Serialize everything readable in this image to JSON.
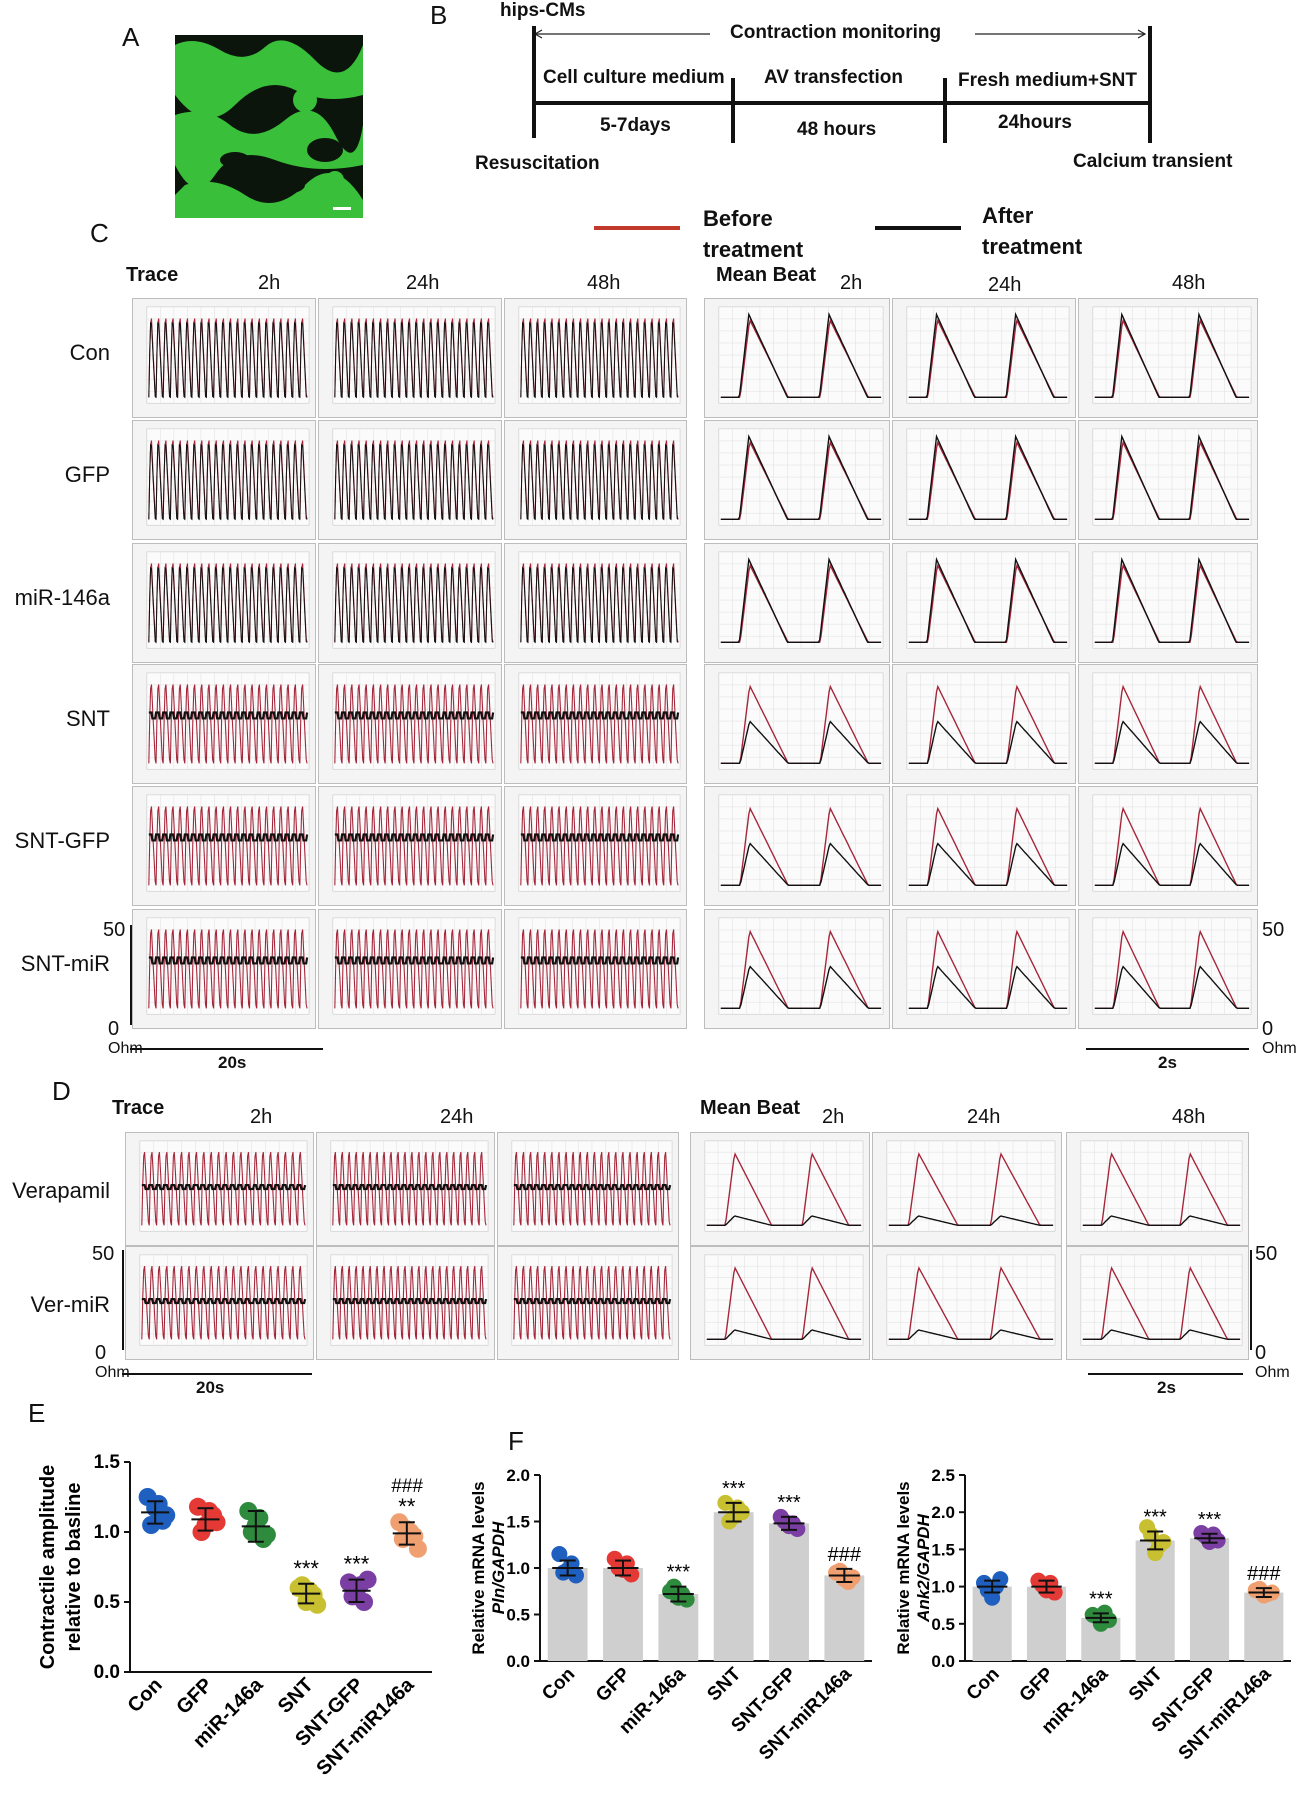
{
  "panels": {
    "A": "A",
    "B": "B",
    "C": "C",
    "D": "D",
    "E": "E",
    "F": "F"
  },
  "timeline": {
    "start_label": "hips-CMs",
    "monitor_label": "Contraction monitoring",
    "stages": [
      "Cell culture medium",
      "AV transfection",
      "Fresh medium+SNT"
    ],
    "durations": [
      "5-7days",
      "48 hours",
      "24hours"
    ],
    "start_event": "Resuscitation",
    "end_event": "Calcium transient"
  },
  "legend": {
    "before": "Before treatment",
    "after": "After treatment",
    "before_color": "#c0392b",
    "after_color": "#111111"
  },
  "panelC": {
    "trace_title": "Trace",
    "mean_title": "Mean Beat",
    "times": [
      "2h",
      "24h",
      "48h"
    ],
    "rows": [
      "Con",
      "GFP",
      "miR-146a",
      "SNT",
      "SNT-GFP",
      "SNT-miR"
    ],
    "scale_top": "50",
    "scale_bottom": "0",
    "unit": "Ohm",
    "trace_scale": "20s",
    "mean_scale": "2s"
  },
  "panelD": {
    "trace_title": "Trace",
    "mean_title": "Mean Beat",
    "times": [
      "2h",
      "24h",
      "48h"
    ],
    "rows": [
      "Verapamil",
      "Ver-miR"
    ],
    "scale_top": "50",
    "scale_bottom": "0",
    "unit": "Ohm",
    "trace_scale": "20s",
    "mean_scale": "2s"
  },
  "chart_data": [
    {
      "type": "scatter",
      "ylabel": "Contractile amplitude relative to basline",
      "categories": [
        "Con",
        "GFP",
        "miR-146a",
        "SNT",
        "SNT-GFP",
        "SNT-miR146a"
      ],
      "means": [
        1.14,
        1.09,
        1.04,
        0.56,
        0.58,
        0.99
      ],
      "sd": [
        0.08,
        0.08,
        0.11,
        0.07,
        0.08,
        0.08
      ],
      "points": [
        [
          1.25,
          1.17,
          1.08,
          1.05,
          1.2,
          1.12
        ],
        [
          1.18,
          1.05,
          1.12,
          1.0,
          1.15,
          1.07
        ],
        [
          1.15,
          1.05,
          0.95,
          1.0,
          1.1,
          0.98
        ],
        [
          0.6,
          0.5,
          0.55,
          0.62,
          0.58,
          0.48
        ],
        [
          0.64,
          0.58,
          0.5,
          0.54,
          0.62,
          0.66
        ],
        [
          1.07,
          1.02,
          0.97,
          0.95,
          1.0,
          0.88
        ]
      ],
      "colors": [
        "#1f5fbf",
        "#e53935",
        "#2e8b3e",
        "#c8c030",
        "#7b3fa3",
        "#f0a070"
      ],
      "ylim": [
        0.0,
        1.5
      ],
      "yticks": [
        "0.0",
        "0.5",
        "1.0",
        "1.5"
      ],
      "annotations": [
        "",
        "",
        "",
        "***",
        "***",
        "**"
      ],
      "annotations2": [
        "",
        "",
        "",
        "",
        "",
        "###"
      ]
    },
    {
      "type": "bar",
      "ylabel": "Relative mRNA levels",
      "ylabel2": "Pln/GAPDH",
      "categories": [
        "Con",
        "GFP",
        "miR-146a",
        "SNT",
        "SNT-GFP",
        "SNT-miR146a"
      ],
      "values": [
        1.0,
        1.0,
        0.72,
        1.6,
        1.48,
        0.92
      ],
      "sd": [
        0.08,
        0.08,
        0.08,
        0.1,
        0.07,
        0.07
      ],
      "points": [
        [
          1.15,
          0.98,
          0.92,
          0.95,
          1.05
        ],
        [
          1.1,
          0.98,
          0.93,
          1.0,
          1.05
        ],
        [
          0.75,
          0.68,
          0.66,
          0.8,
          0.72
        ],
        [
          1.7,
          1.55,
          1.6,
          1.5,
          1.65
        ],
        [
          1.55,
          1.45,
          1.42,
          1.5,
          1.48
        ],
        [
          0.95,
          0.88,
          0.9,
          0.97,
          0.85
        ]
      ],
      "colors": [
        "#1f5fbf",
        "#e53935",
        "#2e8b3e",
        "#c8c030",
        "#7b3fa3",
        "#f0a070"
      ],
      "ylim": [
        0.0,
        2.0
      ],
      "yticks": [
        "0.0",
        "0.5",
        "1.0",
        "1.5",
        "2.0"
      ],
      "annotations": [
        "",
        "",
        "***",
        "***",
        "***",
        "###"
      ]
    },
    {
      "type": "bar",
      "ylabel": "Relative mRNA levels",
      "ylabel2": "Ank2/GAPDH",
      "categories": [
        "Con",
        "GFP",
        "miR-146a",
        "SNT",
        "SNT-GFP",
        "SNT-miR146a"
      ],
      "values": [
        1.0,
        1.0,
        0.58,
        1.62,
        1.65,
        0.92
      ],
      "sd": [
        0.08,
        0.08,
        0.06,
        0.12,
        0.06,
        0.06
      ],
      "points": [
        [
          1.05,
          0.85,
          1.1,
          0.95,
          1.0
        ],
        [
          1.08,
          0.95,
          0.92,
          1.02,
          1.05
        ],
        [
          0.62,
          0.5,
          0.55,
          0.6,
          0.65
        ],
        [
          1.8,
          1.45,
          1.6,
          1.7,
          1.55
        ],
        [
          1.72,
          1.6,
          1.62,
          1.68,
          1.7
        ],
        [
          0.95,
          0.88,
          0.92,
          0.97,
          0.9
        ]
      ],
      "colors": [
        "#1f5fbf",
        "#e53935",
        "#2e8b3e",
        "#c8c030",
        "#7b3fa3",
        "#f0a070"
      ],
      "ylim": [
        0.0,
        2.5
      ],
      "yticks": [
        "0.0",
        "0.5",
        "1.0",
        "1.5",
        "2.0",
        "2.5"
      ],
      "annotations": [
        "",
        "",
        "***",
        "***",
        "***",
        "###"
      ]
    }
  ]
}
